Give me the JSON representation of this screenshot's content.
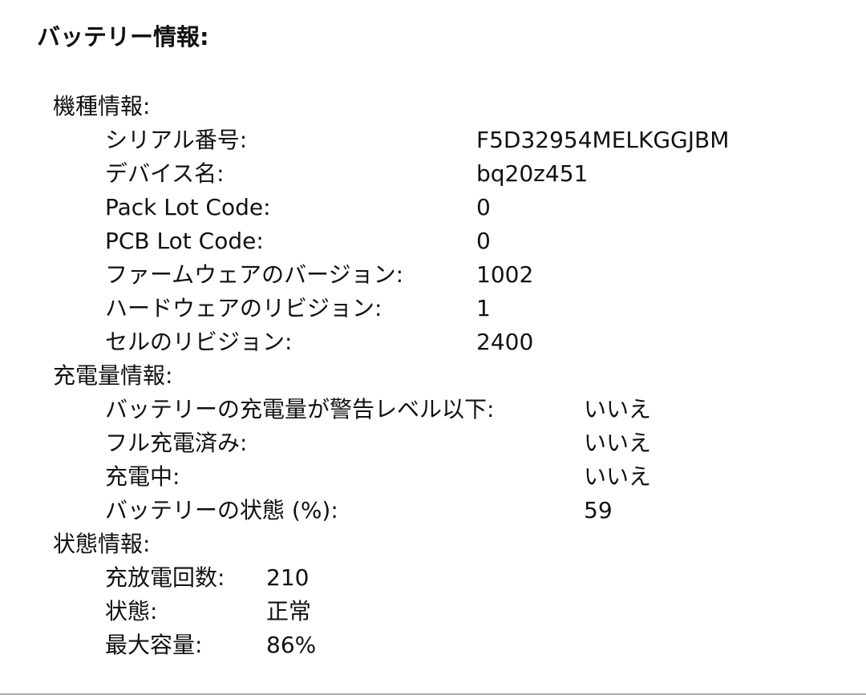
{
  "title": "バッテリー情報:",
  "sections": [
    {
      "label": "機種情報:",
      "items": [
        {
          "label": "シリアル番号:",
          "value": "F5D32954MELKGGJBM"
        },
        {
          "label": "デバイス名:",
          "value": "bq20z451"
        },
        {
          "label": "Pack Lot Code:",
          "value": "0"
        },
        {
          "label": "PCB Lot Code:",
          "value": "0"
        },
        {
          "label": "ファームウェアのバージョン:",
          "value": "1002"
        },
        {
          "label": "ハードウェアのリビジョン:",
          "value": "1"
        },
        {
          "label": "セルのリビジョン:",
          "value": "2400"
        }
      ]
    },
    {
      "label": "充電量情報:",
      "items": [
        {
          "label": "バッテリーの充電量が警告レベル以下:",
          "value": "いいえ"
        },
        {
          "label": "フル充電済み:",
          "value": "いいえ"
        },
        {
          "label": "充電中:",
          "value": "いいえ"
        },
        {
          "label": "バッテリーの状態 (%):",
          "value": "59"
        }
      ]
    },
    {
      "label": "状態情報:",
      "items": [
        {
          "label": "充放電回数:",
          "value": "210"
        },
        {
          "label": "状態:",
          "value": "正常"
        },
        {
          "label": "最大容量:",
          "value": "86%"
        }
      ]
    }
  ]
}
